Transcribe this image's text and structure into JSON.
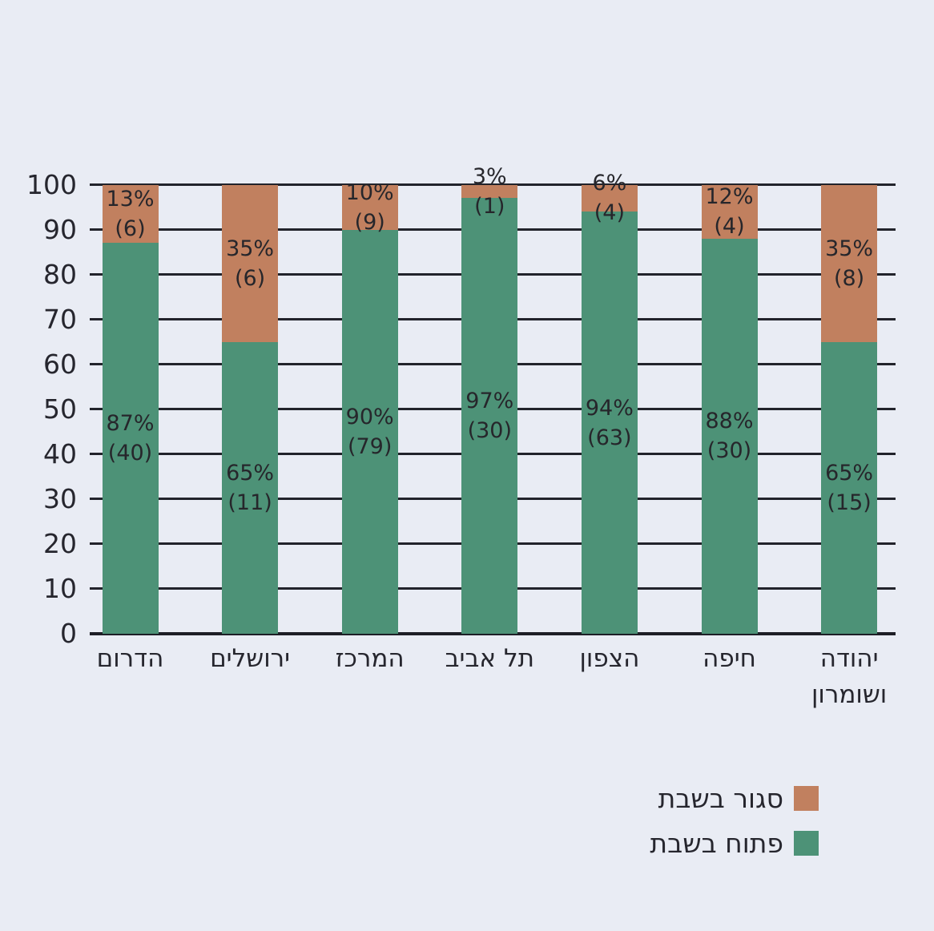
{
  "page": {
    "background": "#e9ecf4"
  },
  "chart_data": {
    "type": "bar",
    "stacked": true,
    "direction": "rtl",
    "title": "",
    "xlabel": "",
    "ylabel": "",
    "ylim": [
      0,
      100
    ],
    "yticks": [
      0,
      10,
      20,
      30,
      40,
      50,
      60,
      70,
      80,
      90,
      100
    ],
    "grid": true,
    "categories": [
      "הדרום",
      "ירושלים",
      "המרכז",
      "תל אביב",
      "הצפון",
      "חיפה",
      "יהודה ושומרון"
    ],
    "category_lines": [
      [
        "הדרום"
      ],
      [
        "ירושלים"
      ],
      [
        "המרכז"
      ],
      [
        "תל אביב"
      ],
      [
        "הצפון"
      ],
      [
        "חיפה"
      ],
      [
        "יהודה",
        "ושומרון"
      ]
    ],
    "series": [
      {
        "name": "פתוח בשבת",
        "color": "#4d9277",
        "values": [
          87,
          65,
          90,
          97,
          94,
          88,
          65
        ],
        "counts": [
          40,
          11,
          79,
          30,
          63,
          30,
          15
        ]
      },
      {
        "name": "סגור בשבת",
        "color": "#c1805f",
        "values": [
          13,
          35,
          10,
          3,
          6,
          12,
          35
        ],
        "counts": [
          6,
          6,
          9,
          1,
          4,
          4,
          8
        ]
      }
    ],
    "bar_label_format": "{value}% ({count})",
    "legend_position": "bottom-right"
  },
  "legend": {
    "items": [
      {
        "label": "סגור בשבת",
        "color": "#c1805f",
        "series": "closed-on-shabbat"
      },
      {
        "label": "פתוח בשבת",
        "color": "#4d9277",
        "series": "open-on-shabbat"
      }
    ]
  }
}
